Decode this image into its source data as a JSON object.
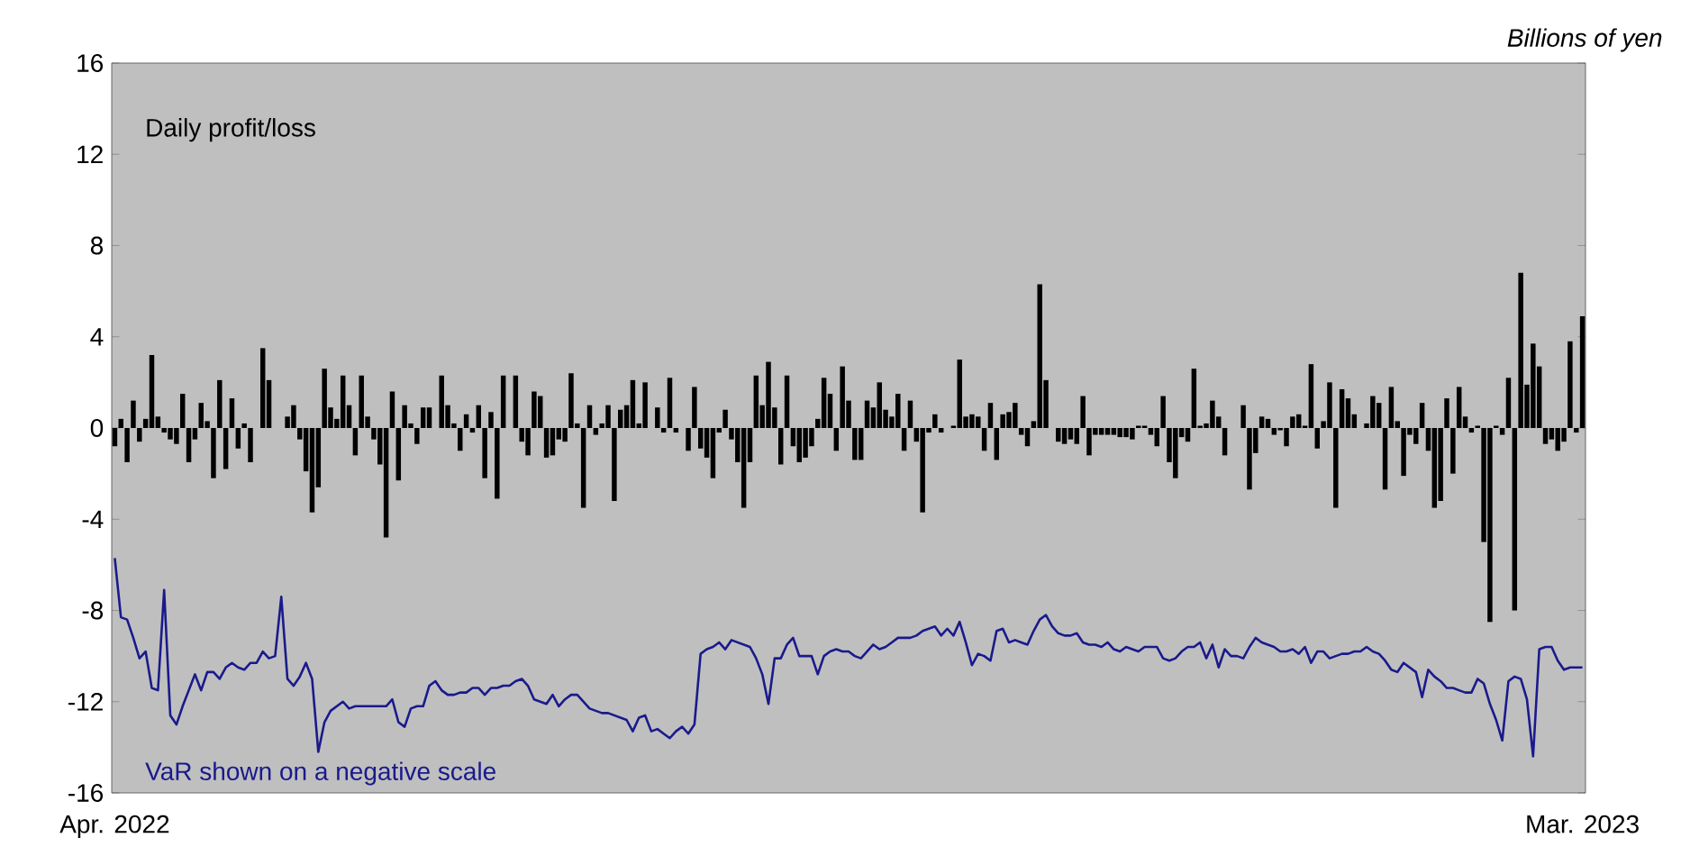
{
  "chart_data": {
    "type": "bar",
    "ylabel": "Billions of yen",
    "categories": [
      "Apr. 2022",
      null,
      null,
      null,
      null,
      null,
      null,
      null,
      null,
      null,
      null,
      null,
      null,
      null,
      null,
      null,
      null,
      null,
      null,
      null,
      null,
      null,
      null,
      null,
      null,
      null,
      null,
      null,
      null,
      null,
      null,
      null,
      null,
      null,
      null,
      null,
      null,
      null,
      null,
      null,
      null,
      null,
      null,
      null,
      null,
      null,
      null,
      null,
      null,
      null,
      null,
      null,
      null,
      null,
      null,
      null,
      null,
      null,
      null,
      null,
      null,
      null,
      null,
      null,
      null,
      null,
      null,
      null,
      null,
      null,
      null,
      null,
      null,
      null,
      null,
      null,
      null,
      null,
      null,
      null,
      null,
      null,
      null,
      null,
      null,
      null,
      null,
      null,
      null,
      null,
      null,
      null,
      null,
      null,
      null,
      null,
      null,
      null,
      null,
      null,
      null,
      null,
      null,
      null,
      null,
      null,
      null,
      null,
      null,
      null,
      null,
      null,
      null,
      null,
      null,
      null,
      null,
      null,
      null,
      null,
      null,
      null,
      null,
      null,
      null,
      null,
      null,
      null,
      null,
      null,
      null,
      null,
      null,
      null,
      null,
      null,
      null,
      null,
      null,
      null,
      null,
      null,
      null,
      null,
      null,
      null,
      null,
      null,
      null,
      null,
      null,
      null,
      null,
      null,
      null,
      null,
      null,
      null,
      null,
      null,
      null,
      null,
      null,
      null,
      null,
      null,
      null,
      null,
      null,
      null,
      null,
      null,
      null,
      null,
      null,
      null,
      null,
      null,
      null,
      null,
      null,
      null,
      null,
      null,
      null,
      null,
      null,
      null,
      null,
      null,
      null,
      null,
      null,
      null,
      null,
      null,
      null,
      null,
      null,
      null,
      null,
      null,
      null,
      null,
      null,
      null,
      null,
      null,
      null,
      null,
      null,
      null,
      null,
      null,
      null,
      null,
      null,
      null,
      null,
      null,
      null,
      null,
      null,
      null,
      null,
      null,
      null,
      null,
      null,
      null,
      null,
      null,
      null,
      null,
      null,
      null,
      null,
      null,
      "Mar. 2023"
    ],
    "series": [
      {
        "name": "Daily profit/loss",
        "color": "#000000",
        "values": [
          -0.8,
          0.4,
          -1.5,
          1.2,
          -0.6,
          0.4,
          3.2,
          0.5,
          -0.2,
          -0.5,
          -0.7,
          1.5,
          -1.5,
          -0.5,
          1.1,
          0.3,
          -2.2,
          2.1,
          -1.8,
          1.3,
          -0.9,
          0.2,
          -1.5,
          0,
          3.5,
          2.1,
          0,
          0,
          0.5,
          1.0,
          -0.5,
          -1.9,
          -3.7,
          -2.6,
          2.6,
          0.9,
          0.4,
          2.3,
          1.0,
          -1.2,
          2.3,
          0.5,
          -0.5,
          -1.6,
          -4.8,
          1.6,
          -2.3,
          1.0,
          0.2,
          -0.7,
          0.9,
          0.9,
          0,
          2.3,
          1.0,
          0.2,
          -1.0,
          0.6,
          -0.2,
          1.0,
          -2.2,
          0.7,
          -3.1,
          2.3,
          0,
          2.3,
          -0.6,
          -1.2,
          1.6,
          1.4,
          -1.3,
          -1.2,
          -0.5,
          -0.6,
          2.4,
          0.2,
          -3.5,
          1.0,
          -0.3,
          0.2,
          1.0,
          -3.2,
          0.8,
          1.0,
          2.1,
          0.2,
          2.0,
          0,
          0.9,
          -0.2,
          2.2,
          -0.2,
          0,
          -1.0,
          1.8,
          -0.9,
          -1.3,
          -2.2,
          -0.2,
          0.8,
          -0.5,
          -1.5,
          -3.5,
          -1.5,
          2.3,
          1.0,
          2.9,
          0.9,
          -1.6,
          2.3,
          -0.8,
          -1.5,
          -1.3,
          -0.8,
          0.4,
          2.2,
          1.5,
          -1.0,
          2.7,
          1.2,
          -1.4,
          -1.4,
          1.2,
          0.9,
          2.0,
          0.8,
          0.5,
          1.5,
          -1.0,
          1.2,
          -0.6,
          -3.7,
          -0.2,
          0.6,
          -0.2,
          0,
          0.1,
          3.0,
          0.5,
          0.6,
          0.5,
          -1.0,
          1.1,
          -1.4,
          0.6,
          0.7,
          1.1,
          -0.3,
          -0.8,
          0.3,
          6.3,
          2.1,
          0,
          -0.6,
          -0.7,
          -0.5,
          -0.7,
          1.4,
          -1.2,
          -0.3,
          -0.3,
          -0.3,
          -0.3,
          -0.4,
          -0.4,
          -0.5,
          0.1,
          0.1,
          -0.3,
          -0.8,
          1.4,
          -1.5,
          -2.2,
          -0.4,
          -0.6,
          2.6,
          0.1,
          0.2,
          1.2,
          0.5,
          -1.2,
          0,
          0,
          1.0,
          -2.7,
          -1.1,
          0.5,
          0.4,
          -0.3,
          -0.1,
          -0.8,
          0.5,
          0.6,
          0.1,
          2.8,
          -0.9,
          0.3,
          2.0,
          -3.5,
          1.7,
          1.3,
          0.6,
          0,
          0.2,
          1.4,
          1.1,
          -2.7,
          1.8,
          0.3,
          -2.1,
          -0.3,
          -0.7,
          1.1,
          -1.0,
          -3.5,
          -3.2,
          1.3,
          -2.0,
          1.8,
          0.5,
          -0.2,
          0.1,
          -5.0,
          -8.5,
          0.1,
          -0.3,
          2.2,
          -8.0,
          6.8,
          1.9,
          3.7,
          2.7,
          -0.7,
          -0.5,
          -1.0,
          -0.6,
          3.8,
          -0.2,
          4.9
        ]
      },
      {
        "name": "VaR shown on a negative scale",
        "type": "line",
        "color": "#1a1a8c",
        "values": [
          -5.7,
          -8.3,
          -8.4,
          -9.2,
          -10.1,
          -9.8,
          -11.4,
          -11.5,
          -7.1,
          -12.6,
          -13.0,
          -12.2,
          -11.5,
          -10.8,
          -11.5,
          -10.7,
          -10.7,
          -11.0,
          -10.5,
          -10.3,
          -10.5,
          -10.6,
          -10.3,
          -10.3,
          -9.8,
          -10.1,
          -10.0,
          -7.4,
          -11.0,
          -11.3,
          -10.9,
          -10.3,
          -11.0,
          -14.2,
          -12.9,
          -12.4,
          -12.2,
          -12.0,
          -12.3,
          -12.2,
          -12.2,
          -12.2,
          -12.2,
          -12.2,
          -12.2,
          -11.9,
          -12.9,
          -13.1,
          -12.3,
          -12.2,
          -12.2,
          -11.3,
          -11.1,
          -11.5,
          -11.7,
          -11.7,
          -11.6,
          -11.6,
          -11.4,
          -11.4,
          -11.7,
          -11.4,
          -11.4,
          -11.3,
          -11.3,
          -11.1,
          -11.0,
          -11.3,
          -11.9,
          -12.0,
          -12.1,
          -11.7,
          -12.2,
          -11.9,
          -11.7,
          -11.7,
          -12.0,
          -12.3,
          -12.4,
          -12.5,
          -12.5,
          -12.6,
          -12.7,
          -12.8,
          -13.3,
          -12.7,
          -12.6,
          -13.3,
          -13.2,
          -13.4,
          -13.6,
          -13.3,
          -13.1,
          -13.4,
          -13.0,
          -9.9,
          -9.7,
          -9.6,
          -9.4,
          -9.7,
          -9.3,
          -9.4,
          -9.5,
          -9.6,
          -10.1,
          -10.8,
          -12.1,
          -10.1,
          -10.1,
          -9.5,
          -9.2,
          -10.0,
          -10.0,
          -10.0,
          -10.8,
          -10.0,
          -9.8,
          -9.7,
          -9.8,
          -9.8,
          -10.0,
          -10.1,
          -9.8,
          -9.5,
          -9.7,
          -9.6,
          -9.4,
          -9.2,
          -9.2,
          -9.2,
          -9.1,
          -8.9,
          -8.8,
          -8.7,
          -9.1,
          -8.8,
          -9.1,
          -8.5,
          -9.4,
          -10.4,
          -9.9,
          -10.0,
          -10.2,
          -8.9,
          -8.8,
          -9.4,
          -9.3,
          -9.4,
          -9.5,
          -8.9,
          -8.4,
          -8.2,
          -8.7,
          -9.0,
          -9.1,
          -9.1,
          -9.0,
          -9.4,
          -9.5,
          -9.5,
          -9.6,
          -9.4,
          -9.7,
          -9.8,
          -9.6,
          -9.7,
          -9.8,
          -9.6,
          -9.6,
          -9.6,
          -10.1,
          -10.2,
          -10.1,
          -9.8,
          -9.6,
          -9.6,
          -9.4,
          -10.1,
          -9.5,
          -10.5,
          -9.7,
          -10.0,
          -10.0,
          -10.1,
          -9.6,
          -9.2,
          -9.4,
          -9.5,
          -9.6,
          -9.8,
          -9.8,
          -9.7,
          -9.9,
          -9.6,
          -10.3,
          -9.8,
          -9.8,
          -10.1,
          -10.0,
          -9.9,
          -9.9,
          -9.8,
          -9.8,
          -9.6,
          -9.8,
          -9.9,
          -10.2,
          -10.6,
          -10.7,
          -10.3,
          -10.5,
          -10.7,
          -11.8,
          -10.6,
          -10.9,
          -11.1,
          -11.4,
          -11.4,
          -11.5,
          -11.6,
          -11.6,
          -11.0,
          -11.2,
          -12.1,
          -12.8,
          -13.7,
          -11.1,
          -10.9,
          -11.0,
          -11.9,
          -14.4,
          -9.7,
          -9.6,
          -9.6,
          -10.2,
          -10.6,
          -10.5,
          -10.5,
          -10.5
        ]
      }
    ],
    "ylim": [
      -16,
      16
    ],
    "yticks": [
      -16,
      -12,
      -8,
      -4,
      0,
      4,
      8,
      12,
      16
    ]
  }
}
